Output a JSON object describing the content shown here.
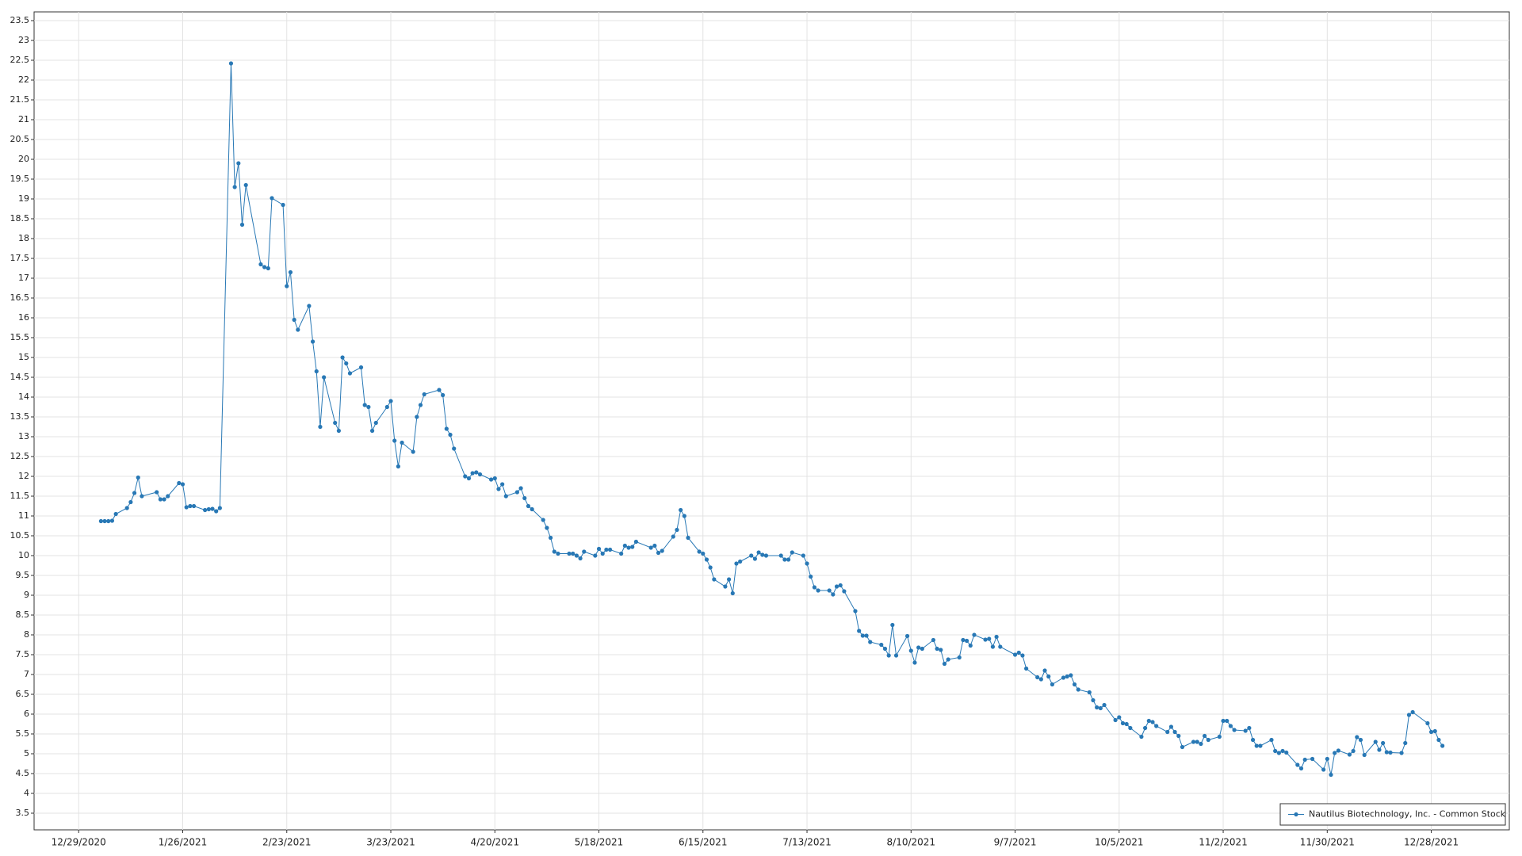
{
  "chart_data": {
    "type": "line",
    "x": [
      "1/4/2021",
      "1/5/2021",
      "1/6/2021",
      "1/7/2021",
      "1/8/2021",
      "1/11/2021",
      "1/12/2021",
      "1/13/2021",
      "1/14/2021",
      "1/15/2021",
      "1/19/2021",
      "1/20/2021",
      "1/21/2021",
      "1/22/2021",
      "1/25/2021",
      "1/26/2021",
      "1/27/2021",
      "1/28/2021",
      "1/29/2021",
      "2/1/2021",
      "2/2/2021",
      "2/3/2021",
      "2/4/2021",
      "2/5/2021",
      "2/8/2021",
      "2/9/2021",
      "2/10/2021",
      "2/11/2021",
      "2/12/2021",
      "2/16/2021",
      "2/17/2021",
      "2/18/2021",
      "2/19/2021",
      "2/22/2021",
      "2/23/2021",
      "2/24/2021",
      "2/25/2021",
      "2/26/2021",
      "3/1/2021",
      "3/2/2021",
      "3/3/2021",
      "3/4/2021",
      "3/5/2021",
      "3/8/2021",
      "3/9/2021",
      "3/10/2021",
      "3/11/2021",
      "3/12/2021",
      "3/15/2021",
      "3/16/2021",
      "3/17/2021",
      "3/18/2021",
      "3/19/2021",
      "3/22/2021",
      "3/23/2021",
      "3/24/2021",
      "3/25/2021",
      "3/26/2021",
      "3/29/2021",
      "3/30/2021",
      "3/31/2021",
      "4/1/2021",
      "4/5/2021",
      "4/6/2021",
      "4/7/2021",
      "4/8/2021",
      "4/9/2021",
      "4/12/2021",
      "4/13/2021",
      "4/14/2021",
      "4/15/2021",
      "4/16/2021",
      "4/19/2021",
      "4/20/2021",
      "4/21/2021",
      "4/22/2021",
      "4/23/2021",
      "4/26/2021",
      "4/27/2021",
      "4/28/2021",
      "4/29/2021",
      "4/30/2021",
      "5/3/2021",
      "5/4/2021",
      "5/5/2021",
      "5/6/2021",
      "5/7/2021",
      "5/10/2021",
      "5/11/2021",
      "5/12/2021",
      "5/13/2021",
      "5/14/2021",
      "5/17/2021",
      "5/18/2021",
      "5/19/2021",
      "5/20/2021",
      "5/21/2021",
      "5/24/2021",
      "5/25/2021",
      "5/26/2021",
      "5/27/2021",
      "5/28/2021",
      "6/1/2021",
      "6/2/2021",
      "6/3/2021",
      "6/4/2021",
      "6/7/2021",
      "6/8/2021",
      "6/9/2021",
      "6/10/2021",
      "6/11/2021",
      "6/14/2021",
      "6/15/2021",
      "6/16/2021",
      "6/17/2021",
      "6/18/2021",
      "6/21/2021",
      "6/22/2021",
      "6/23/2021",
      "6/24/2021",
      "6/25/2021",
      "6/28/2021",
      "6/29/2021",
      "6/30/2021",
      "7/1/2021",
      "7/2/2021",
      "7/6/2021",
      "7/7/2021",
      "7/8/2021",
      "7/9/2021",
      "7/12/2021",
      "7/13/2021",
      "7/14/2021",
      "7/15/2021",
      "7/16/2021",
      "7/19/2021",
      "7/20/2021",
      "7/21/2021",
      "7/22/2021",
      "7/23/2021",
      "7/26/2021",
      "7/27/2021",
      "7/28/2021",
      "7/29/2021",
      "7/30/2021",
      "8/2/2021",
      "8/3/2021",
      "8/4/2021",
      "8/5/2021",
      "8/6/2021",
      "8/9/2021",
      "8/10/2021",
      "8/11/2021",
      "8/12/2021",
      "8/13/2021",
      "8/16/2021",
      "8/17/2021",
      "8/18/2021",
      "8/19/2021",
      "8/20/2021",
      "8/23/2021",
      "8/24/2021",
      "8/25/2021",
      "8/26/2021",
      "8/27/2021",
      "8/30/2021",
      "8/31/2021",
      "9/1/2021",
      "9/2/2021",
      "9/3/2021",
      "9/7/2021",
      "9/8/2021",
      "9/9/2021",
      "9/10/2021",
      "9/13/2021",
      "9/14/2021",
      "9/15/2021",
      "9/16/2021",
      "9/17/2021",
      "9/20/2021",
      "9/21/2021",
      "9/22/2021",
      "9/23/2021",
      "9/24/2021",
      "9/27/2021",
      "9/28/2021",
      "9/29/2021",
      "9/30/2021",
      "10/1/2021",
      "10/4/2021",
      "10/5/2021",
      "10/6/2021",
      "10/7/2021",
      "10/8/2021",
      "10/11/2021",
      "10/12/2021",
      "10/13/2021",
      "10/14/2021",
      "10/15/2021",
      "10/18/2021",
      "10/19/2021",
      "10/20/2021",
      "10/21/2021",
      "10/22/2021",
      "10/25/2021",
      "10/26/2021",
      "10/27/2021",
      "10/28/2021",
      "10/29/2021",
      "11/1/2021",
      "11/2/2021",
      "11/3/2021",
      "11/4/2021",
      "11/5/2021",
      "11/8/2021",
      "11/9/2021",
      "11/10/2021",
      "11/11/2021",
      "11/12/2021",
      "11/15/2021",
      "11/16/2021",
      "11/17/2021",
      "11/18/2021",
      "11/19/2021",
      "11/22/2021",
      "11/23/2021",
      "11/24/2021",
      "11/26/2021",
      "11/29/2021",
      "11/30/2021",
      "12/1/2021",
      "12/2/2021",
      "12/3/2021",
      "12/6/2021",
      "12/7/2021",
      "12/8/2021",
      "12/9/2021",
      "12/10/2021",
      "12/13/2021",
      "12/14/2021",
      "12/15/2021",
      "12/16/2021",
      "12/17/2021",
      "12/20/2021",
      "12/21/2021",
      "12/22/2021",
      "12/23/2021",
      "12/27/2021",
      "12/28/2021",
      "12/29/2021",
      "12/30/2021",
      "12/31/2021"
    ],
    "series": [
      {
        "name": "Nautilus Biotechnology, Inc. - Common Stock",
        "color": "#2878b5",
        "values": [
          10.87,
          10.87,
          10.87,
          10.88,
          11.05,
          11.2,
          11.35,
          11.58,
          11.97,
          11.5,
          11.6,
          11.42,
          11.42,
          11.5,
          11.83,
          11.8,
          11.22,
          11.25,
          11.25,
          11.15,
          11.17,
          11.18,
          11.12,
          11.2,
          22.42,
          19.3,
          19.9,
          18.35,
          19.35,
          17.35,
          17.28,
          17.25,
          19.02,
          18.85,
          16.8,
          17.15,
          15.95,
          15.7,
          16.3,
          15.4,
          14.65,
          13.25,
          14.5,
          13.35,
          13.15,
          15.0,
          14.85,
          14.6,
          14.75,
          13.8,
          13.75,
          13.15,
          13.35,
          13.75,
          13.9,
          12.9,
          12.25,
          12.85,
          12.62,
          13.5,
          13.8,
          14.07,
          14.18,
          14.05,
          13.2,
          13.05,
          12.7,
          12.0,
          11.95,
          12.08,
          12.1,
          12.05,
          11.92,
          11.95,
          11.68,
          11.8,
          11.5,
          11.6,
          11.7,
          11.45,
          11.25,
          11.17,
          10.9,
          10.7,
          10.45,
          10.1,
          10.05,
          10.05,
          10.05,
          10.0,
          9.93,
          10.1,
          10.0,
          10.17,
          10.05,
          10.15,
          10.15,
          10.05,
          10.25,
          10.2,
          10.22,
          10.35,
          10.2,
          10.25,
          10.07,
          10.12,
          10.48,
          10.65,
          11.15,
          11.0,
          10.45,
          10.1,
          10.05,
          9.9,
          9.7,
          9.4,
          9.22,
          9.4,
          9.05,
          9.8,
          9.85,
          10.0,
          9.92,
          10.08,
          10.02,
          10.0,
          10.0,
          9.9,
          9.9,
          10.08,
          10.0,
          9.8,
          9.47,
          9.2,
          9.12,
          9.12,
          9.02,
          9.22,
          9.25,
          9.1,
          8.6,
          8.1,
          7.98,
          7.98,
          7.82,
          7.75,
          7.65,
          7.48,
          8.25,
          7.48,
          7.97,
          7.6,
          7.3,
          7.68,
          7.65,
          7.87,
          7.65,
          7.62,
          7.27,
          7.38,
          7.43,
          7.87,
          7.85,
          7.73,
          8.0,
          7.88,
          7.9,
          7.7,
          7.95,
          7.7,
          7.5,
          7.55,
          7.48,
          7.15,
          6.93,
          6.88,
          7.1,
          6.95,
          6.75,
          6.92,
          6.95,
          6.98,
          6.75,
          6.62,
          6.55,
          6.35,
          6.17,
          6.15,
          6.23,
          5.85,
          5.92,
          5.77,
          5.75,
          5.65,
          5.43,
          5.65,
          5.83,
          5.8,
          5.7,
          5.55,
          5.68,
          5.55,
          5.45,
          5.17,
          5.3,
          5.3,
          5.25,
          5.45,
          5.35,
          5.43,
          5.83,
          5.83,
          5.7,
          5.6,
          5.58,
          5.65,
          5.35,
          5.2,
          5.2,
          5.35,
          5.07,
          5.02,
          5.07,
          5.03,
          4.72,
          4.63,
          4.85,
          4.87,
          4.6,
          4.87,
          4.47,
          5.02,
          5.08,
          4.98,
          5.07,
          5.42,
          5.35,
          4.97,
          5.3,
          5.1,
          5.27,
          5.04,
          5.03,
          5.02,
          5.27,
          5.98,
          6.05,
          5.77,
          5.55,
          5.57,
          5.35,
          5.2
        ]
      }
    ],
    "xlim": [
      "12/17/2020",
      "1/18/2022"
    ],
    "xticks": [
      "12/29/2020",
      "1/26/2021",
      "2/23/2021",
      "3/23/2021",
      "4/20/2021",
      "5/18/2021",
      "6/15/2021",
      "7/13/2021",
      "8/10/2021",
      "9/7/2021",
      "10/5/2021",
      "11/2/2021",
      "11/30/2021",
      "12/28/2021"
    ],
    "ylim": [
      3.08,
      23.72
    ],
    "yticks": [
      3.5,
      4,
      4.5,
      5,
      5.5,
      6,
      6.5,
      7,
      7.5,
      8,
      8.5,
      9,
      9.5,
      10,
      10.5,
      11,
      11.5,
      12,
      12.5,
      13,
      13.5,
      14,
      14.5,
      15,
      15.5,
      16,
      16.5,
      17,
      17.5,
      18,
      18.5,
      19,
      19.5,
      20,
      20.5,
      21,
      21.5,
      22,
      22.5,
      23,
      23.5
    ],
    "grid": true,
    "legend": "bottom-right"
  }
}
